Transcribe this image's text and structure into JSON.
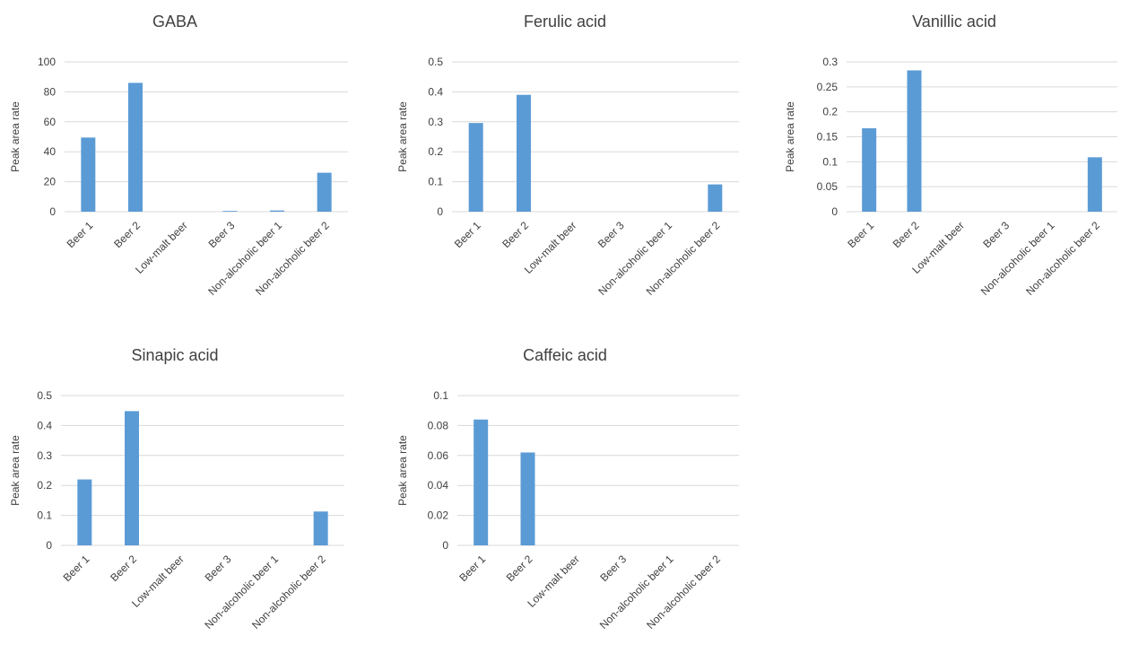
{
  "style": {
    "bar_color": "#5b9bd5",
    "grid_color": "#d9d9d9",
    "text_color": "#404040"
  },
  "chart_data": [
    {
      "type": "bar",
      "title": "GABA",
      "ylabel": "Peak area rate",
      "xlabel": "",
      "categories": [
        "Beer 1",
        "Beer 2",
        "Low-malt beer",
        "Beer 3",
        "Non-alcoholic beer 1",
        "Non-alcoholic beer 2"
      ],
      "values": [
        49.5,
        86.0,
        0,
        0.5,
        0.8,
        26.0
      ],
      "ylim": [
        0,
        100
      ],
      "yticks": [
        "0",
        "20",
        "40",
        "60",
        "80",
        "100"
      ],
      "grid": true,
      "legend": "none"
    },
    {
      "type": "bar",
      "title": "Ferulic acid",
      "ylabel": "Peak area rate",
      "xlabel": "",
      "categories": [
        "Beer 1",
        "Beer 2",
        "Low-malt beer",
        "Beer 3",
        "Non-alcoholic beer 1",
        "Non-alcoholic beer 2"
      ],
      "values": [
        0.296,
        0.39,
        0,
        0,
        0,
        0.091
      ],
      "ylim": [
        0,
        0.5
      ],
      "yticks": [
        "0",
        "0.1",
        "0.2",
        "0.3",
        "0.4",
        "0.5"
      ],
      "grid": true,
      "legend": "none"
    },
    {
      "type": "bar",
      "title": "Vanillic acid",
      "ylabel": "Peak area rate",
      "xlabel": "",
      "categories": [
        "Beer 1",
        "Beer 2",
        "Low-malt beer",
        "Beer 3",
        "Non-alcoholic beer 1",
        "Non-alcoholic beer 2"
      ],
      "values": [
        0.167,
        0.283,
        0,
        0,
        0,
        0.109
      ],
      "ylim": [
        0,
        0.3
      ],
      "yticks": [
        "0",
        "0.05",
        "0.1",
        "0.15",
        "0.2",
        "0.25",
        "0.3"
      ],
      "grid": true,
      "legend": "none"
    },
    {
      "type": "bar",
      "title": "Sinapic acid",
      "ylabel": "Peak area rate",
      "xlabel": "",
      "categories": [
        "Beer 1",
        "Beer 2",
        "Low-malt beer",
        "Beer 3",
        "Non-alcoholic beer 1",
        "Non-alcoholic beer 2"
      ],
      "values": [
        0.22,
        0.448,
        0,
        0,
        0,
        0.113
      ],
      "ylim": [
        0,
        0.5
      ],
      "yticks": [
        "0",
        "0.1",
        "0.2",
        "0.3",
        "0.4",
        "0.5"
      ],
      "grid": true,
      "legend": "none"
    },
    {
      "type": "bar",
      "title": "Caffeic acid",
      "ylabel": "Peak area rate",
      "xlabel": "",
      "categories": [
        "Beer 1",
        "Beer 2",
        "Low-malt beer",
        "Beer 3",
        "Non-alcoholic beer 1",
        "Non-alcoholic beer 2"
      ],
      "values": [
        0.084,
        0.062,
        0,
        0,
        0,
        0
      ],
      "ylim": [
        0,
        0.1
      ],
      "yticks": [
        "0",
        "0.02",
        "0.04",
        "0.06",
        "0.08",
        "0.1"
      ],
      "grid": true,
      "legend": "none"
    }
  ]
}
